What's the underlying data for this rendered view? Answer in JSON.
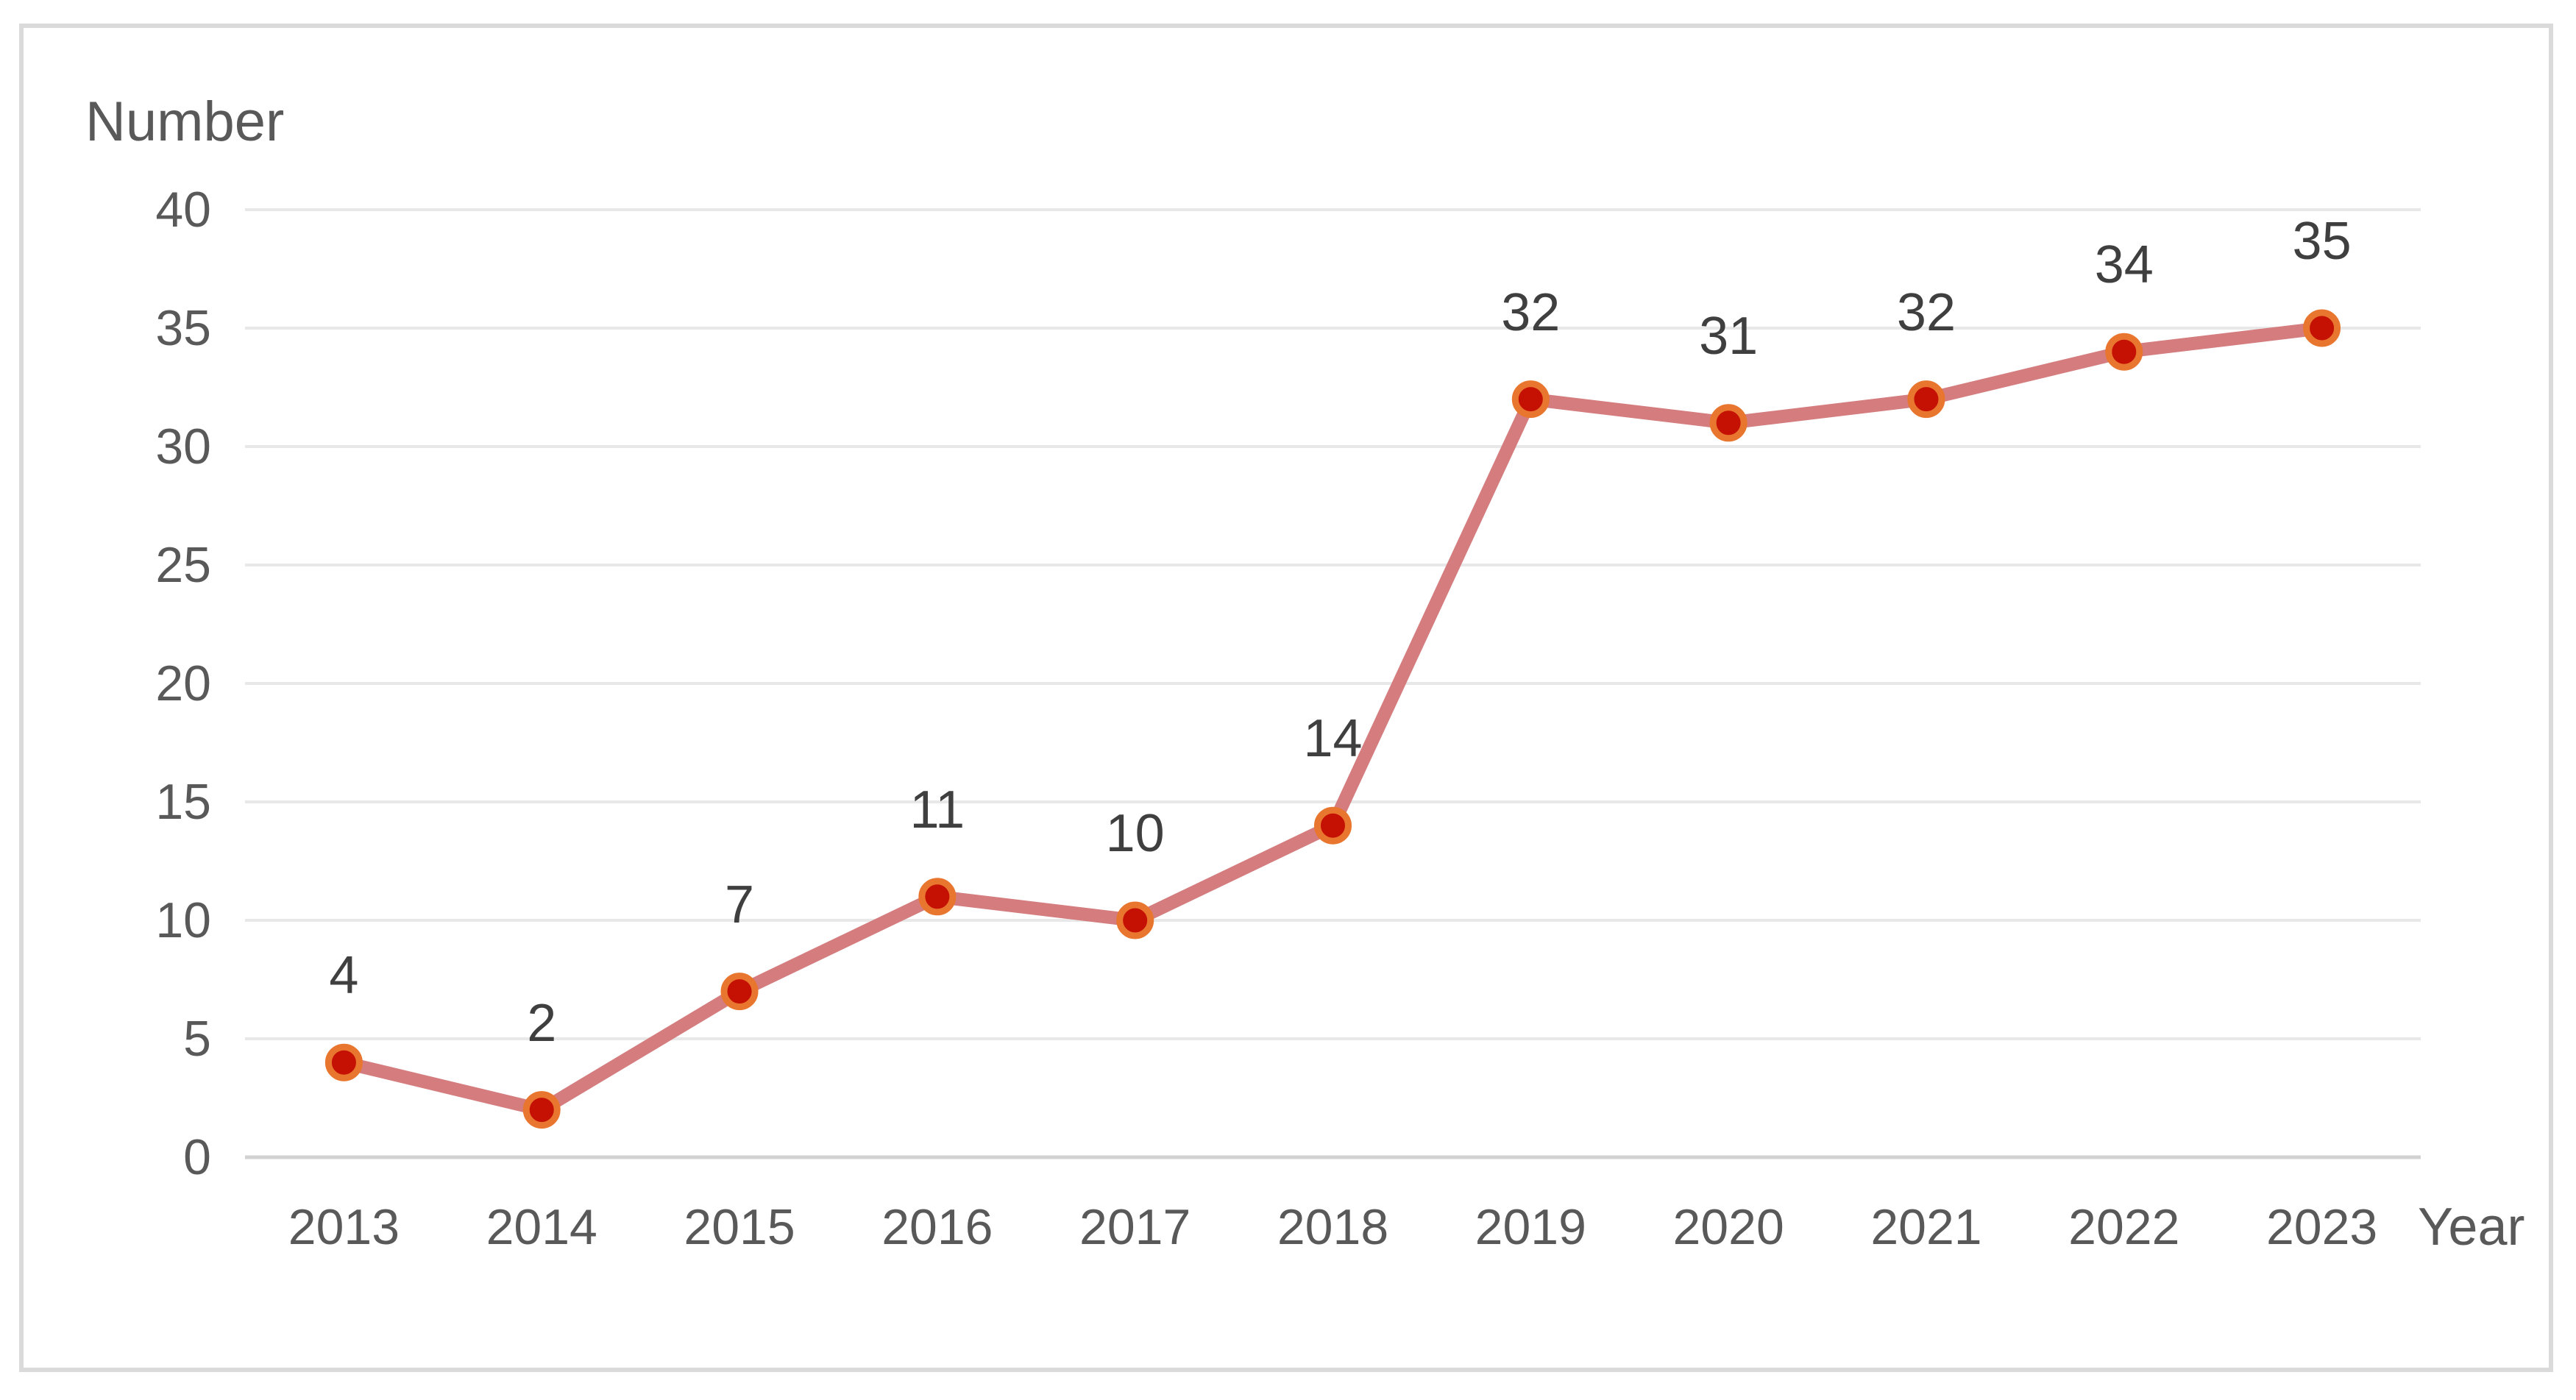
{
  "chart_data": {
    "type": "line",
    "categories": [
      "2013",
      "2014",
      "2015",
      "2016",
      "2017",
      "2018",
      "2019",
      "2020",
      "2021",
      "2022",
      "2023"
    ],
    "values": [
      4,
      2,
      7,
      11,
      10,
      14,
      32,
      31,
      32,
      34,
      35
    ],
    "data_labels": [
      "4",
      "2",
      "7",
      "11",
      "10",
      "14",
      "32",
      "31",
      "32",
      "34",
      "35"
    ],
    "ylabel": "Number",
    "xlabel": "Year",
    "ylim": [
      0,
      40
    ],
    "yticks": [
      "0",
      "5",
      "10",
      "15",
      "20",
      "25",
      "30",
      "35",
      "40"
    ],
    "grid": "horizontal",
    "legend": "none",
    "colors": {
      "line": "#d47c7e",
      "marker_fill": "#c41104",
      "marker_ring": "#e9762e",
      "gridline": "#e8e8e8",
      "axis_line": "#d2d2d2",
      "tick_text": "#595959",
      "data_label_text": "#3f3f3f",
      "frame_border": "#dadada"
    }
  }
}
